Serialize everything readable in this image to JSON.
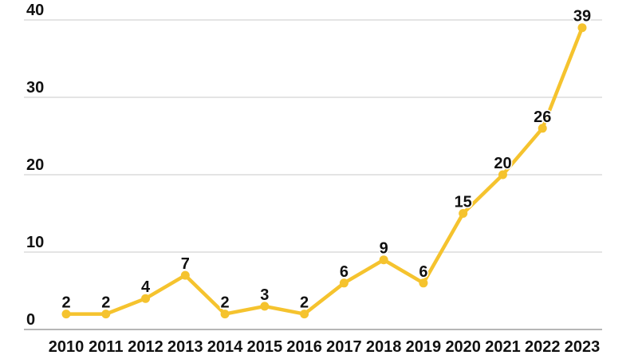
{
  "chart_data": {
    "type": "line",
    "title": "",
    "xlabel": "",
    "ylabel": "",
    "categories": [
      "2010",
      "2011",
      "2012",
      "2013",
      "2014",
      "2015",
      "2016",
      "2017",
      "2018",
      "2019",
      "2020",
      "2021",
      "2022",
      "2023"
    ],
    "series": [
      {
        "name": "annual-count",
        "values": [
          2,
          2,
          4,
          7,
          2,
          3,
          2,
          6,
          9,
          6,
          15,
          20,
          26,
          39
        ]
      }
    ],
    "value_labels": [
      "2",
      "2",
      "4",
      "7",
      "2",
      "3",
      "2",
      "6",
      "9",
      "6",
      "15",
      "20",
      "26",
      "39"
    ],
    "ylim": [
      0,
      40
    ],
    "yticks": [
      0,
      10,
      20,
      30,
      40
    ],
    "grid": "horizontal",
    "legend": "none",
    "colors": {
      "line": "#F5C32E",
      "marker": "#F5C32E",
      "text": "#111111",
      "gridline": "#c9c9c9",
      "axis_line": "#9e9e9e",
      "background": "#ffffff"
    }
  }
}
